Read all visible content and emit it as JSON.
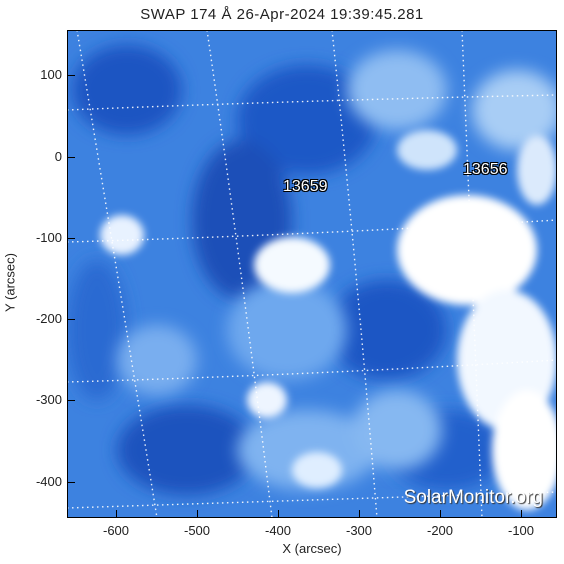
{
  "title": "SWAP 174 Å 26-Apr-2024 19:39:45.281",
  "watermark": "SolarMonitor.org",
  "active_regions": [
    "13659",
    "13656"
  ],
  "axes": {
    "xlabel": "X (arcsec)",
    "ylabel": "Y (arcsec)",
    "xticks": [
      "-600",
      "-500",
      "-400",
      "-300",
      "-200",
      "-100"
    ],
    "yticks": [
      "100",
      "0",
      "-100",
      "-200",
      "-300",
      "-400"
    ]
  },
  "colors": {
    "colormap_dark": "#1b4fb8",
    "colormap_mid": "#4a8fe8",
    "colormap_bright": "#ffffff",
    "grid": "#ffffff"
  }
}
